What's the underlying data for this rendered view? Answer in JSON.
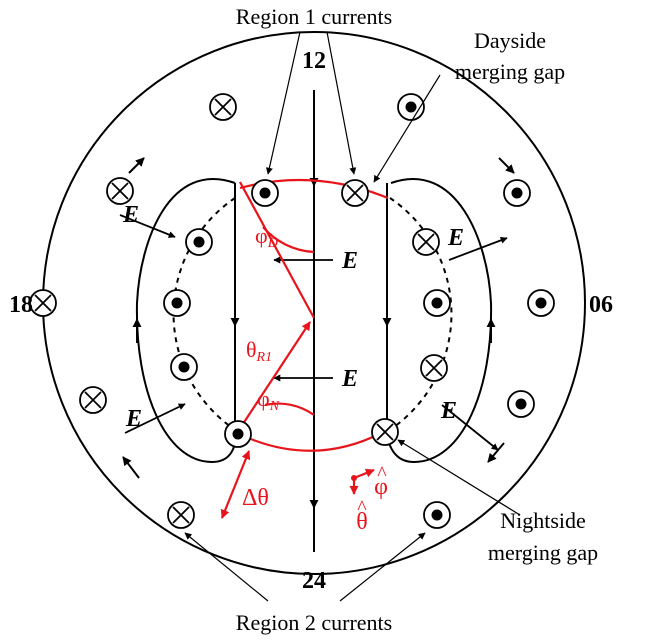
{
  "labels": {
    "region1": "Region 1 currents",
    "region2": "Region 2 currents",
    "dayside": [
      "Dayside",
      "merging gap"
    ],
    "nightside": [
      "Nightside",
      "merging gap"
    ]
  },
  "hours": {
    "h12": "12",
    "h06": "06",
    "h18": "18",
    "h24": "24"
  },
  "field": {
    "e": "E"
  },
  "angles": {
    "phi_d_main": "φ",
    "phi_d_sub": "D",
    "phi_n_main": "φ",
    "phi_n_sub": "N",
    "theta_main": "θ",
    "theta_sub": "R1",
    "delta_theta": "Δθ",
    "phi_hat": "φ",
    "theta_hat": "θ",
    "hat": "^"
  },
  "colors": {
    "ink": "#000000",
    "accent": "#e8141b"
  }
}
